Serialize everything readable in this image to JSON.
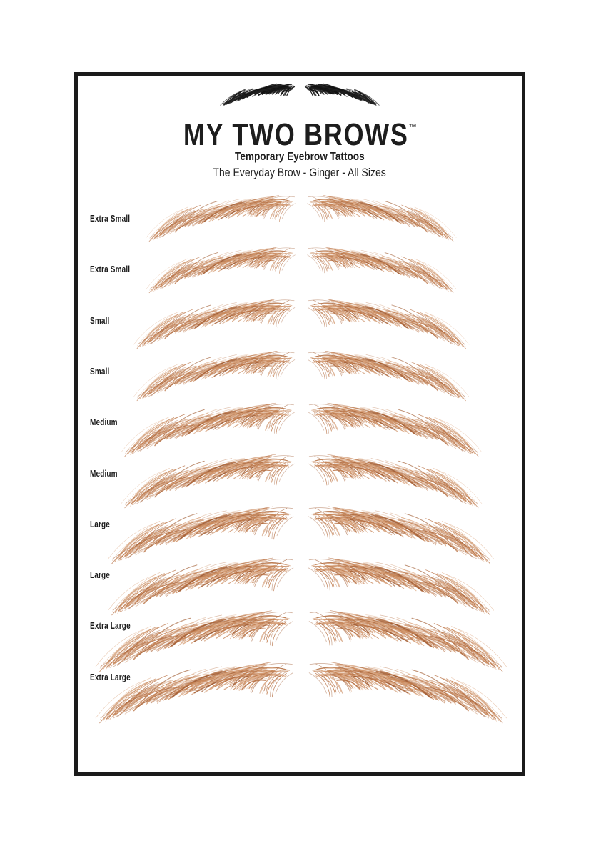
{
  "header": {
    "brand": "MY TWO BROWS",
    "trademark": "™",
    "subtitle": "Temporary Eyebrow Tattoos",
    "tagline": "The Everyday Brow - Ginger - All Sizes"
  },
  "colors": {
    "frame_border": "#1b1b1b",
    "text": "#1d1d1d",
    "logo_brow_black": "#171717",
    "hair_ginger_palette": [
      "#a05a30",
      "#b56b3d",
      "#c07a4a",
      "#cc8d60",
      "#dca883"
    ]
  },
  "rows": [
    {
      "label": "Extra Small"
    },
    {
      "label": "Extra Small"
    },
    {
      "label": "Small"
    },
    {
      "label": "Small"
    },
    {
      "label": "Medium"
    },
    {
      "label": "Medium"
    },
    {
      "label": "Large"
    },
    {
      "label": "Large"
    },
    {
      "label": "Extra Large"
    },
    {
      "label": "Extra Large"
    }
  ]
}
